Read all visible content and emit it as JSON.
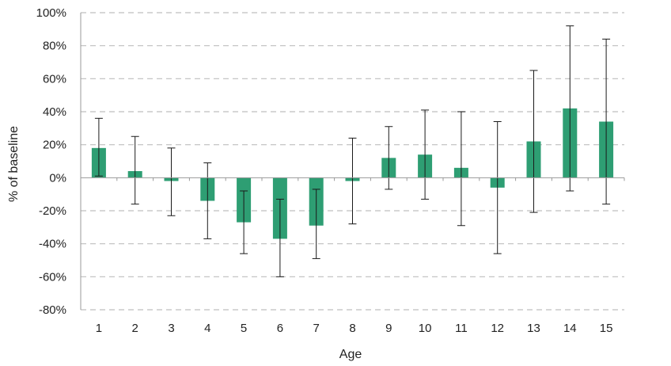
{
  "chart_data": {
    "type": "bar",
    "title": "",
    "xlabel": "Age",
    "ylabel": "% of baseline",
    "categories": [
      "1",
      "2",
      "3",
      "4",
      "5",
      "6",
      "7",
      "8",
      "9",
      "10",
      "11",
      "12",
      "13",
      "14",
      "15"
    ],
    "series": [
      {
        "values": [
          18,
          4,
          -2,
          -14,
          -27,
          -37,
          -29,
          -2,
          12,
          14,
          6,
          -6,
          22,
          42,
          34
        ],
        "error_low": [
          1,
          -16,
          -23,
          -37,
          -46,
          -60,
          -49,
          -28,
          -7,
          -13,
          -29,
          -46,
          -21,
          -8,
          -16
        ],
        "error_high": [
          36,
          25,
          18,
          9,
          -8,
          -13,
          -7,
          24,
          31,
          41,
          40,
          34,
          65,
          92,
          84
        ]
      }
    ],
    "ylim": [
      -80,
      100
    ],
    "yticks": [
      -80,
      -60,
      -40,
      -20,
      0,
      20,
      40,
      60,
      80,
      100
    ],
    "ytick_labels": [
      "-80%",
      "-60%",
      "-40%",
      "-20%",
      "0%",
      "20%",
      "40%",
      "60%",
      "80%",
      "100%"
    ],
    "grid": true,
    "bar_color": "#2e9e73",
    "legend": "none"
  }
}
